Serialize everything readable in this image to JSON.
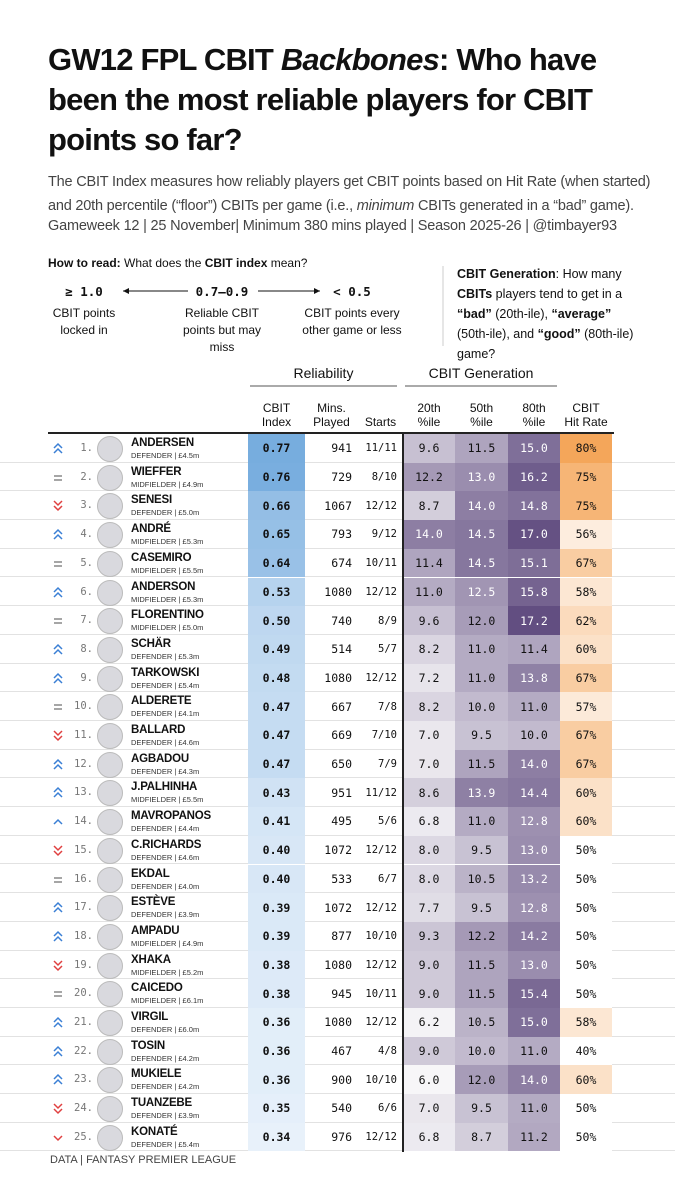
{
  "header": {
    "title": [
      {
        "text": "GW12 FPL CBIT "
      },
      {
        "text": "Backbones",
        "italic": true
      },
      {
        "text": ": Who have been the most reliable players for CBIT points so far?"
      }
    ],
    "subtitle": [
      {
        "text": "The CBIT Index measures how reliably players get CBIT points based on Hit Rate (when started) and 20th percentile (“floor”) CBITs per game (i.e., "
      },
      {
        "text": "minimum",
        "italic": true
      },
      {
        "text": " CBITs generated in a “bad” game)."
      }
    ],
    "meta": "Gameweek 12 | 25 November| Minimum 380 mins played | Season 2025-26 | @timbayer93"
  },
  "how_to_read": {
    "parts": [
      {
        "text": "How to read:",
        "bold": true
      },
      {
        "text": " What does the "
      },
      {
        "text": "CBIT index",
        "bold": true
      },
      {
        "text": " mean?"
      }
    ],
    "scale": [
      {
        "value": "≥ 1.0",
        "desc": "CBIT points locked in"
      },
      {
        "value": "0.7–0.9",
        "desc": "Reliable CBIT points but may miss"
      },
      {
        "value": "< 0.5",
        "desc": "CBIT points every other game or less"
      }
    ]
  },
  "generation_note": {
    "parts": [
      {
        "text": "CBIT Generation",
        "bold": true
      },
      {
        "text": ": How many "
      },
      {
        "text": "CBITs",
        "bold": true
      },
      {
        "text": " players tend to get in a "
      },
      {
        "text": "“bad”",
        "bold": true
      },
      {
        "text": " (20th-ile), "
      },
      {
        "text": "“average”",
        "bold": true
      },
      {
        "text": " (50th-ile), and "
      },
      {
        "text": "“good”",
        "bold": true
      },
      {
        "text": " (80th-ile) game?"
      }
    ]
  },
  "table": {
    "groups": [
      "Reliability",
      "CBIT Generation"
    ],
    "columns": [
      [
        "CBIT",
        "Index"
      ],
      [
        "Mins.",
        "Played"
      ],
      [
        "Starts"
      ],
      [
        "20th",
        "%ile"
      ],
      [
        "50th",
        "%ile"
      ],
      [
        "80th",
        "%ile"
      ],
      [
        "CBIT",
        "Hit Rate"
      ]
    ],
    "rows": [
      {
        "trend": "up2",
        "rank": "1.",
        "name": "ANDERSEN",
        "info": "DEFENDER | £4.5m",
        "index": "0.77",
        "mins": "941",
        "starts": "11/11",
        "p20": "9.6",
        "p50": "11.5",
        "p80": "15.0",
        "hit_rate": "80%"
      },
      {
        "trend": "eq",
        "rank": "2.",
        "name": "WIEFFER",
        "info": "MIDFIELDER | £4.9m",
        "index": "0.76",
        "mins": "729",
        "starts": "8/10",
        "p20": "12.2",
        "p50": "13.0",
        "p80": "16.2",
        "hit_rate": "75%"
      },
      {
        "trend": "down2",
        "rank": "3.",
        "name": "SENESI",
        "info": "DEFENDER | £5.0m",
        "index": "0.66",
        "mins": "1067",
        "starts": "12/12",
        "p20": "8.7",
        "p50": "14.0",
        "p80": "14.8",
        "hit_rate": "75%"
      },
      {
        "trend": "up2",
        "rank": "4.",
        "name": "ANDRÉ",
        "info": "MIDFIELDER | £5.3m",
        "index": "0.65",
        "mins": "793",
        "starts": "9/12",
        "p20": "14.0",
        "p50": "14.5",
        "p80": "17.0",
        "hit_rate": "56%"
      },
      {
        "trend": "eq",
        "rank": "5.",
        "name": "CASEMIRO",
        "info": "MIDFIELDER | £5.5m",
        "index": "0.64",
        "mins": "674",
        "starts": "10/11",
        "p20": "11.4",
        "p50": "14.5",
        "p80": "15.1",
        "hit_rate": "67%"
      },
      {
        "trend": "up2",
        "rank": "6.",
        "name": "ANDERSON",
        "info": "MIDFIELDER | £5.3m",
        "index": "0.53",
        "mins": "1080",
        "starts": "12/12",
        "p20": "11.0",
        "p50": "12.5",
        "p80": "15.8",
        "hit_rate": "58%"
      },
      {
        "trend": "eq",
        "rank": "7.",
        "name": "FLORENTINO",
        "info": "MIDFIELDER | £5.0m",
        "index": "0.50",
        "mins": "740",
        "starts": "8/9",
        "p20": "9.6",
        "p50": "12.0",
        "p80": "17.2",
        "hit_rate": "62%"
      },
      {
        "trend": "up2",
        "rank": "8.",
        "name": "SCHÄR",
        "info": "DEFENDER | £5.3m",
        "index": "0.49",
        "mins": "514",
        "starts": "5/7",
        "p20": "8.2",
        "p50": "11.0",
        "p80": "11.4",
        "hit_rate": "60%"
      },
      {
        "trend": "up2",
        "rank": "9.",
        "name": "TARKOWSKI",
        "info": "DEFENDER | £5.4m",
        "index": "0.48",
        "mins": "1080",
        "starts": "12/12",
        "p20": "7.2",
        "p50": "11.0",
        "p80": "13.8",
        "hit_rate": "67%"
      },
      {
        "trend": "eq",
        "rank": "10.",
        "name": "ALDERETE",
        "info": "DEFENDER | £4.1m",
        "index": "0.47",
        "mins": "667",
        "starts": "7/8",
        "p20": "8.2",
        "p50": "10.0",
        "p80": "11.0",
        "hit_rate": "57%"
      },
      {
        "trend": "down2",
        "rank": "11.",
        "name": "BALLARD",
        "info": "DEFENDER | £4.6m",
        "index": "0.47",
        "mins": "669",
        "starts": "7/10",
        "p20": "7.0",
        "p50": "9.5",
        "p80": "10.0",
        "hit_rate": "67%"
      },
      {
        "trend": "up2",
        "rank": "12.",
        "name": "AGBADOU",
        "info": "DEFENDER | £4.3m",
        "index": "0.47",
        "mins": "650",
        "starts": "7/9",
        "p20": "7.0",
        "p50": "11.5",
        "p80": "14.0",
        "hit_rate": "67%"
      },
      {
        "trend": "up2",
        "rank": "13.",
        "name": "J.PALHINHA",
        "info": "MIDFIELDER | £5.5m",
        "index": "0.43",
        "mins": "951",
        "starts": "11/12",
        "p20": "8.6",
        "p50": "13.9",
        "p80": "14.4",
        "hit_rate": "60%"
      },
      {
        "trend": "up1",
        "rank": "14.",
        "name": "MAVROPANOS",
        "info": "DEFENDER | £4.4m",
        "index": "0.41",
        "mins": "495",
        "starts": "5/6",
        "p20": "6.8",
        "p50": "11.0",
        "p80": "12.8",
        "hit_rate": "60%"
      },
      {
        "trend": "down2",
        "rank": "15.",
        "name": "C.RICHARDS",
        "info": "DEFENDER | £4.6m",
        "index": "0.40",
        "mins": "1072",
        "starts": "12/12",
        "p20": "8.0",
        "p50": "9.5",
        "p80": "13.0",
        "hit_rate": "50%"
      },
      {
        "trend": "eq",
        "rank": "16.",
        "name": "EKDAL",
        "info": "DEFENDER | £4.0m",
        "index": "0.40",
        "mins": "533",
        "starts": "6/7",
        "p20": "8.0",
        "p50": "10.5",
        "p80": "13.2",
        "hit_rate": "50%"
      },
      {
        "trend": "up2",
        "rank": "17.",
        "name": "ESTÈVE",
        "info": "DEFENDER | £3.9m",
        "index": "0.39",
        "mins": "1072",
        "starts": "12/12",
        "p20": "7.7",
        "p50": "9.5",
        "p80": "12.8",
        "hit_rate": "50%"
      },
      {
        "trend": "up2",
        "rank": "18.",
        "name": "AMPADU",
        "info": "MIDFIELDER | £4.9m",
        "index": "0.39",
        "mins": "877",
        "starts": "10/10",
        "p20": "9.3",
        "p50": "12.2",
        "p80": "14.2",
        "hit_rate": "50%"
      },
      {
        "trend": "down2",
        "rank": "19.",
        "name": "XHAKA",
        "info": "MIDFIELDER | £5.2m",
        "index": "0.38",
        "mins": "1080",
        "starts": "12/12",
        "p20": "9.0",
        "p50": "11.5",
        "p80": "13.0",
        "hit_rate": "50%"
      },
      {
        "trend": "eq",
        "rank": "20.",
        "name": "CAICEDO",
        "info": "MIDFIELDER | £6.1m",
        "index": "0.38",
        "mins": "945",
        "starts": "10/11",
        "p20": "9.0",
        "p50": "11.5",
        "p80": "15.4",
        "hit_rate": "50%"
      },
      {
        "trend": "up2",
        "rank": "21.",
        "name": "VIRGIL",
        "info": "DEFENDER | £6.0m",
        "index": "0.36",
        "mins": "1080",
        "starts": "12/12",
        "p20": "6.2",
        "p50": "10.5",
        "p80": "15.0",
        "hit_rate": "58%"
      },
      {
        "trend": "up2",
        "rank": "22.",
        "name": "TOSIN",
        "info": "DEFENDER | £4.2m",
        "index": "0.36",
        "mins": "467",
        "starts": "4/8",
        "p20": "9.0",
        "p50": "10.0",
        "p80": "11.0",
        "hit_rate": "40%"
      },
      {
        "trend": "up2",
        "rank": "23.",
        "name": "MUKIELE",
        "info": "DEFENDER | £4.2m",
        "index": "0.36",
        "mins": "900",
        "starts": "10/10",
        "p20": "6.0",
        "p50": "12.0",
        "p80": "14.0",
        "hit_rate": "60%"
      },
      {
        "trend": "down2",
        "rank": "24.",
        "name": "TUANZEBE",
        "info": "DEFENDER | £3.9m",
        "index": "0.35",
        "mins": "540",
        "starts": "6/6",
        "p20": "7.0",
        "p50": "9.5",
        "p80": "11.0",
        "hit_rate": "50%"
      },
      {
        "trend": "down1",
        "rank": "25.",
        "name": "KONATÉ",
        "info": "DEFENDER | £5.4m",
        "index": "0.34",
        "mins": "976",
        "starts": "12/12",
        "p20": "6.8",
        "p50": "8.7",
        "p80": "11.2",
        "hit_rate": "50%"
      }
    ]
  },
  "footer": "DATA | FANTASY PREMIER LEAGUE"
}
